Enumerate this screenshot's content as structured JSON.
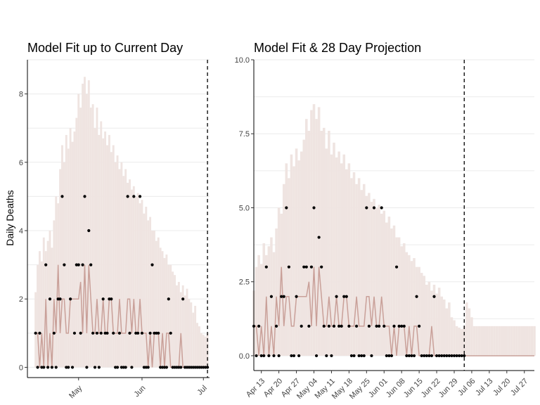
{
  "chart_data": [
    {
      "type": "area",
      "title": "Model Fit up to Current Day",
      "xlabel": "",
      "ylabel": "Daily Deaths",
      "xlim": [
        "2020-04-06",
        "2020-07-04"
      ],
      "ylim": [
        -0.3,
        9.0
      ],
      "x_ticks": [
        {
          "label": "May",
          "date": "2020-05-01"
        },
        {
          "label": "Jun",
          "date": "2020-06-01"
        },
        {
          "label": "Jul",
          "date": "2020-07-01"
        }
      ],
      "y_ticks": [
        {
          "label": "0",
          "value": 0
        },
        {
          "label": "2",
          "value": 2
        },
        {
          "label": "4",
          "value": 4
        },
        {
          "label": "6",
          "value": 6
        },
        {
          "label": "8",
          "value": 8
        }
      ],
      "grid": true,
      "current_day": "2020-07-03",
      "start_date": "2020-04-10",
      "observed": [
        1,
        0,
        1,
        0,
        0,
        3,
        0,
        2,
        0,
        1,
        0,
        2,
        2,
        5,
        3,
        0,
        0,
        2,
        0,
        1,
        3,
        3,
        1,
        3,
        5,
        0,
        4,
        3,
        1,
        0,
        1,
        0,
        1,
        2,
        1,
        1,
        2,
        2,
        1,
        0,
        0,
        1,
        0,
        0,
        0,
        5,
        1,
        0,
        5,
        1,
        1,
        5,
        1,
        0,
        0,
        0,
        1,
        3,
        1,
        1,
        1,
        0,
        0,
        0,
        0,
        2,
        1,
        0,
        0,
        0,
        0,
        0,
        2,
        0,
        0,
        0,
        0,
        0,
        0,
        0,
        0,
        0,
        0,
        0,
        0
      ],
      "model_median": [
        1,
        1,
        0,
        1,
        0,
        2,
        0,
        1,
        0,
        2,
        1,
        3,
        1,
        2,
        2,
        1,
        1,
        2,
        2,
        2,
        2,
        2,
        2.5,
        1,
        3,
        1,
        3,
        2,
        1,
        1,
        2,
        1,
        1,
        2,
        1,
        1,
        2,
        2,
        1,
        1,
        1,
        2,
        1,
        1,
        1,
        2,
        2,
        1,
        2,
        1,
        1,
        2,
        1,
        1,
        1,
        0,
        1,
        0,
        1,
        1,
        1,
        0,
        1,
        0,
        1,
        1,
        0,
        0,
        0,
        0,
        0,
        1,
        0,
        0,
        0,
        0,
        0,
        0,
        0,
        0,
        0,
        0,
        0,
        0,
        0
      ],
      "interval_lower": [
        0,
        0,
        0,
        0,
        0,
        0,
        0,
        0,
        0,
        0,
        0,
        0,
        0,
        0,
        0,
        0,
        0,
        0,
        0,
        0,
        0,
        0,
        0,
        0,
        0,
        0,
        0,
        0,
        0,
        0,
        0,
        0,
        0,
        0,
        0,
        0,
        0,
        0,
        0,
        0,
        0,
        0,
        0,
        0,
        0,
        0,
        0,
        0,
        0,
        0,
        0,
        0,
        0,
        0,
        0,
        0,
        0,
        0,
        0,
        0,
        0,
        0,
        0,
        0,
        0,
        0,
        0,
        0,
        0,
        0,
        0,
        0,
        0,
        0,
        0,
        0,
        0,
        0,
        0,
        0,
        0,
        0,
        0,
        0,
        0
      ],
      "interval_upper": [
        2.2,
        3.0,
        3.4,
        3.1,
        3.8,
        3.4,
        3.7,
        4.0,
        3.5,
        4.3,
        5.0,
        4.8,
        5.8,
        6.5,
        6.0,
        6.8,
        6.4,
        7.0,
        6.6,
        6.9,
        7.3,
        8.0,
        7.6,
        8.3,
        8.5,
        8.0,
        8.4,
        7.6,
        7.7,
        7.0,
        7.6,
        6.8,
        7.2,
        6.7,
        6.9,
        6.5,
        6.8,
        6.3,
        6.5,
        6.0,
        6.2,
        5.8,
        6.0,
        5.6,
        5.8,
        5.4,
        5.5,
        5.2,
        5.3,
        5.0,
        5.1,
        4.8,
        4.9,
        4.5,
        4.7,
        4.3,
        4.4,
        4.0,
        4.0,
        3.7,
        3.8,
        3.5,
        3.4,
        3.2,
        3.3,
        3.0,
        3.0,
        2.8,
        2.7,
        2.4,
        2.5,
        2.2,
        2.4,
        2.1,
        2.3,
        2.0,
        1.9,
        1.6,
        1.8,
        1.3,
        1.2,
        1.0,
        0.95,
        0.9,
        1.0
      ]
    },
    {
      "type": "area",
      "title": "Model Fit & 28 Day Projection",
      "xlabel": "",
      "ylabel": "",
      "xlim": [
        "2020-04-10",
        "2020-07-31"
      ],
      "ylim": [
        -0.5,
        10.0
      ],
      "x_ticks": [
        {
          "label": "Apr 13",
          "date": "2020-04-13"
        },
        {
          "label": "Apr 20",
          "date": "2020-04-20"
        },
        {
          "label": "Apr 27",
          "date": "2020-04-27"
        },
        {
          "label": "May 04",
          "date": "2020-05-04"
        },
        {
          "label": "May 11",
          "date": "2020-05-11"
        },
        {
          "label": "May 18",
          "date": "2020-05-18"
        },
        {
          "label": "May 25",
          "date": "2020-05-25"
        },
        {
          "label": "Jun 01",
          "date": "2020-06-01"
        },
        {
          "label": "Jun 08",
          "date": "2020-06-08"
        },
        {
          "label": "Jun 15",
          "date": "2020-06-15"
        },
        {
          "label": "Jun 22",
          "date": "2020-06-22"
        },
        {
          "label": "Jun 29",
          "date": "2020-06-29"
        },
        {
          "label": "Jul 06",
          "date": "2020-07-06"
        },
        {
          "label": "Jul 13",
          "date": "2020-07-13"
        },
        {
          "label": "Jul 20",
          "date": "2020-07-20"
        },
        {
          "label": "Jul 27",
          "date": "2020-07-27"
        }
      ],
      "y_ticks": [
        {
          "label": "0.0",
          "value": 0
        },
        {
          "label": "2.5",
          "value": 2.5
        },
        {
          "label": "5.0",
          "value": 5
        },
        {
          "label": "7.5",
          "value": 7.5
        },
        {
          "label": "10.0",
          "value": 10
        }
      ],
      "grid": true,
      "current_day": "2020-07-03",
      "start_date": "2020-04-10",
      "projection_upper": [
        1.8,
        1.6,
        1.3,
        1.0,
        1.0,
        1.0,
        1.0,
        1.0,
        1.0,
        1.0,
        1.0,
        1.0,
        1.0,
        1.0,
        1.0,
        1.0,
        1.0,
        1.0,
        1.0,
        1.0,
        1.0,
        1.0,
        1.0,
        1.0,
        1.0,
        1.0,
        1.0,
        1.0
      ],
      "projection_median": [
        0,
        0,
        0,
        0,
        0,
        0,
        0,
        0,
        0,
        0,
        0,
        0,
        0,
        0,
        0,
        0,
        0,
        0,
        0,
        0,
        0,
        0,
        0,
        0,
        0,
        0,
        0,
        0
      ]
    }
  ],
  "colors": {
    "ribbon": "#efe4e1",
    "median_line": "#c9a099",
    "points": "#000000",
    "grid": "#ebebeb",
    "axis": "#000000"
  }
}
